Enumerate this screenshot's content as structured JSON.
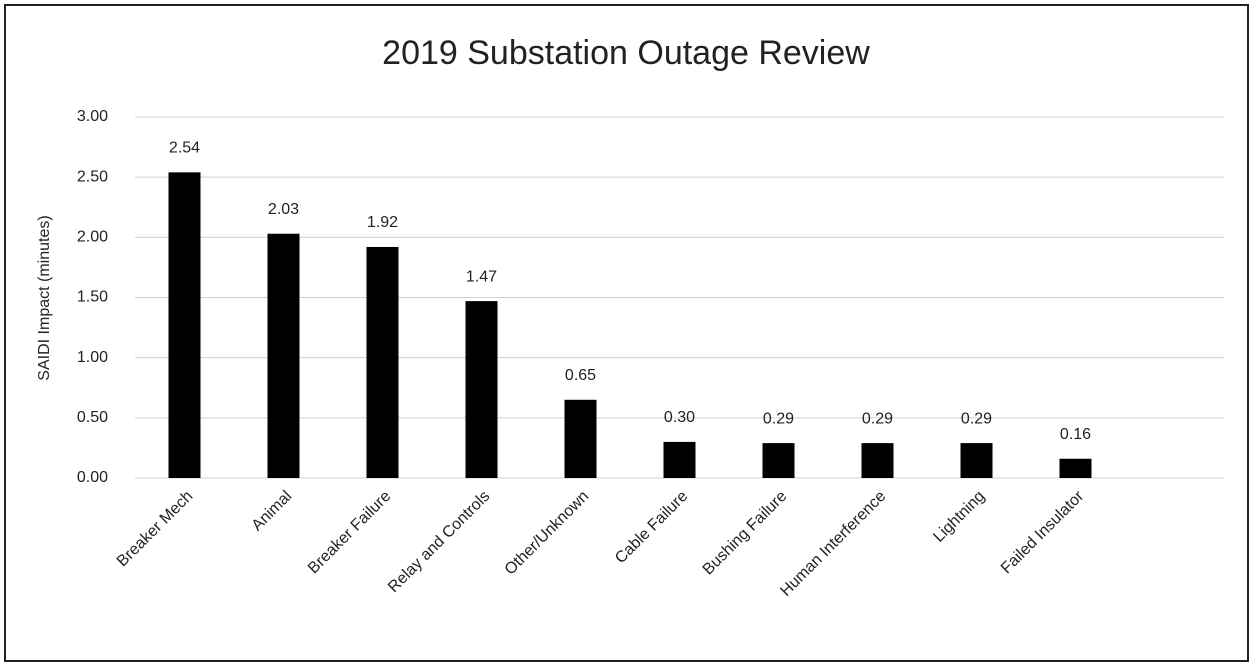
{
  "chart_data": {
    "type": "bar",
    "title": "2019 Substation Outage Review",
    "y_label": "SAIDI Impact  (minutes)",
    "categories": [
      "Breaker Mech",
      "Animal",
      "Breaker Failure",
      "Relay and Controls",
      "Other/Unknown",
      "Cable Failure",
      "Bushing Failure",
      "Human Interference",
      "Lightning",
      "Failed Insulator",
      null
    ],
    "values": [
      2.54,
      2.03,
      1.92,
      1.47,
      0.65,
      0.3,
      0.29,
      0.29,
      0.29,
      0.16,
      null
    ],
    "value_labels": [
      "2.54",
      "2.03",
      "1.92",
      "1.47",
      "0.65",
      "0.30",
      "0.29",
      "0.29",
      "0.29",
      "0.16",
      null
    ],
    "color": "#000000",
    "ylim": [
      0,
      3
    ],
    "yticks": [
      {
        "value": 0,
        "label": "0.00"
      },
      {
        "value": 0.5,
        "label": "0.50"
      },
      {
        "value": 1,
        "label": "1.00"
      },
      {
        "value": 1.5,
        "label": "1.50"
      },
      {
        "value": 2,
        "label": "2.00"
      },
      {
        "value": 2.5,
        "label": "2.50"
      },
      {
        "value": 3,
        "label": "3.00"
      }
    ],
    "grid": true
  }
}
